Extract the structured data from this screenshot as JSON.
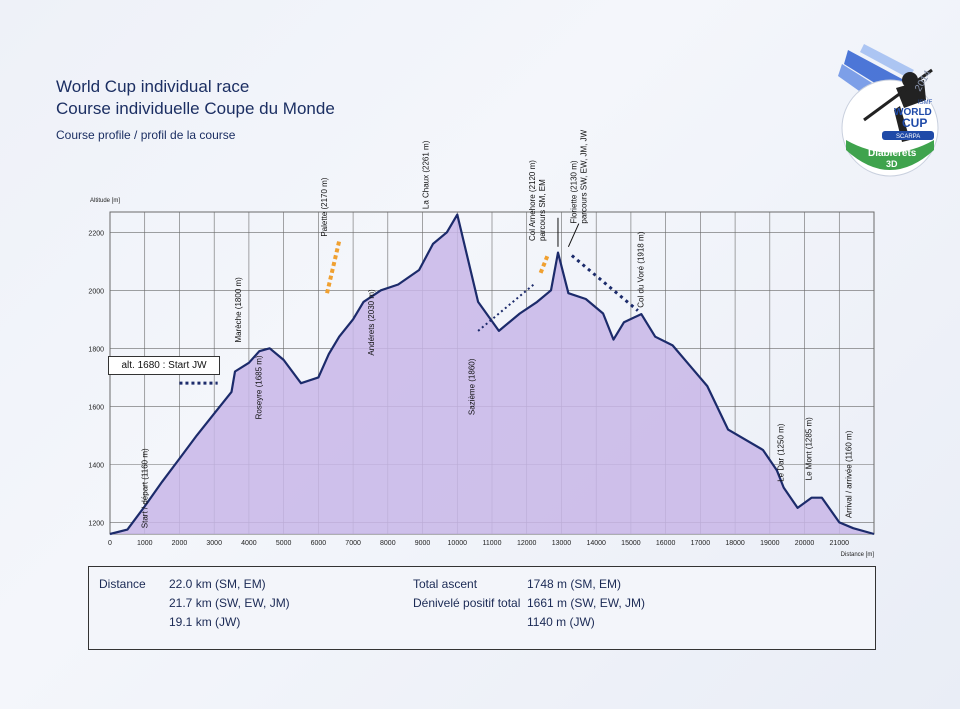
{
  "header": {
    "title_en": "World Cup individual race",
    "title_fr": "Course individuelle Coupe du Monde",
    "subtitle": "Course profile / profil de la course"
  },
  "logo": {
    "year": "2014",
    "org": "ISMF",
    "line1": "WORLD",
    "line2": "CUP",
    "sponsor": "SCARPA",
    "place": "Diablerets",
    "place2": "3D",
    "colors": {
      "blue": "#1f4aa8",
      "green": "#3fa34d",
      "silver": "#9aa3b5"
    }
  },
  "start_box": "alt. 1680 : Start  JW",
  "summary": {
    "distance_label": "Distance",
    "distances": [
      "22.0 km (SM, EM)",
      "21.7 km (SW, EW, JM)",
      "19.1 km (JW)"
    ],
    "ascent_label_en": "Total ascent",
    "ascent_label_fr": "Dénivelé positif total",
    "ascents": [
      "1748 m (SM, EM)",
      "1661 m (SW, EW, JM)",
      "1140 m (JW)"
    ]
  },
  "colors": {
    "fill": "#c8b6e8",
    "line": "#1c2b6b",
    "grid": "#6a6a6a",
    "orange": "#f0a030",
    "dots": "#1c2b6b"
  },
  "chart_data": {
    "type": "area",
    "xlabel": "Distance [m]",
    "ylabel": "Altitude [m]",
    "xlim": [
      0,
      22000
    ],
    "ylim": [
      1160,
      2270
    ],
    "x_ticks": [
      0,
      1000,
      2000,
      3000,
      4000,
      5000,
      6000,
      7000,
      8000,
      9000,
      10000,
      11000,
      12000,
      13000,
      14000,
      15000,
      16000,
      17000,
      18000,
      19000,
      20000,
      21000
    ],
    "y_ticks": [
      1200,
      1400,
      1600,
      1800,
      2000,
      2200
    ],
    "grid": true,
    "profile": {
      "x": [
        0,
        500,
        1000,
        1500,
        2000,
        2500,
        3000,
        3500,
        3600,
        4000,
        4300,
        4600,
        5000,
        5500,
        6000,
        6300,
        6600,
        7000,
        7300,
        7800,
        8300,
        8900,
        9300,
        9700,
        10000,
        10600,
        11200,
        11800,
        12300,
        12700,
        12900,
        13200,
        13700,
        14200,
        14500,
        14800,
        15300,
        15700,
        16200,
        16700,
        17200,
        17800,
        18800,
        19200,
        19400,
        19800,
        20200,
        20500,
        21000,
        21400,
        22000
      ],
      "y": [
        1160,
        1175,
        1255,
        1340,
        1420,
        1500,
        1575,
        1650,
        1720,
        1750,
        1790,
        1800,
        1760,
        1680,
        1700,
        1780,
        1840,
        1900,
        1960,
        2000,
        2020,
        2070,
        2160,
        2200,
        2261,
        1960,
        1860,
        1920,
        1960,
        2000,
        2130,
        1990,
        1970,
        1920,
        1830,
        1890,
        1918,
        1840,
        1810,
        1740,
        1670,
        1520,
        1450,
        1380,
        1320,
        1250,
        1285,
        1285,
        1200,
        1180,
        1160
      ]
    },
    "annotations": [
      {
        "label": "Start / départ (1160 m)",
        "x": 500,
        "y": 1160
      },
      {
        "label": "Marèche (1800 m)",
        "x": 4000,
        "y": 1800
      },
      {
        "label": "Roseyre (1685 m)",
        "x": 4600,
        "y": 1685
      },
      {
        "label": "Palette (2170 m)",
        "x": 6600,
        "y": 2170
      },
      {
        "label": "Andérets (2030 m)",
        "x": 7600,
        "y": 2030
      },
      {
        "label": "La Chaux (2261 m)",
        "x": 9000,
        "y": 2261
      },
      {
        "label": "Sazième (1860)",
        "x": 10500,
        "y": 1860
      },
      {
        "label": "Col Arnehore (2120 m) parcours SM, EM",
        "x": 12700,
        "y": 2120
      },
      {
        "label": "Floriette (2130 m) parcours SW, EW, JM, JW",
        "x": 13200,
        "y": 2130
      },
      {
        "label": "Col du Voré (1918 m)",
        "x": 15300,
        "y": 1918
      },
      {
        "label": "Le Dar (1250 m)",
        "x": 19400,
        "y": 1250
      },
      {
        "label": "Le Mont (1285 m)",
        "x": 20200,
        "y": 1285
      },
      {
        "label": "Arrival / arrivée (1160 m)",
        "x": 21700,
        "y": 1160
      }
    ]
  }
}
